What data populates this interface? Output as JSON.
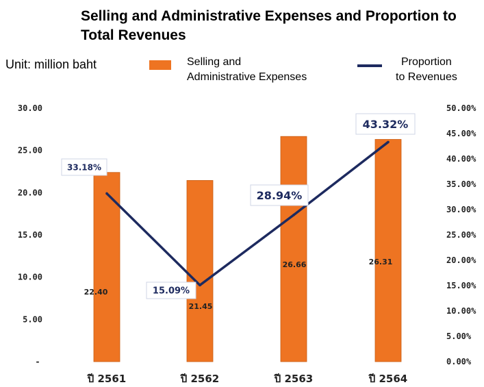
{
  "title": "Selling and Administrative Expenses and Proportion to Total Revenues",
  "unit_label": "Unit: million baht",
  "legend": {
    "bar_label_line1": "Selling and",
    "bar_label_line2": "Administrative Expenses",
    "line_label_line1": "Proportion",
    "line_label_line2": "to Revenues"
  },
  "colors": {
    "bar": "#ee7422",
    "line": "#1d2a5f",
    "label_text": "#1d2a5f"
  },
  "chart_data": {
    "type": "bar",
    "categories": [
      "ปี 2561",
      "ปี 2562",
      "ปี 2563",
      "ปี 2564"
    ],
    "series": [
      {
        "name": "Selling and Administrative Expenses",
        "type": "bar",
        "axis": "left",
        "values": [
          22.4,
          21.45,
          26.66,
          26.31
        ],
        "labels": [
          "22.40",
          "21.45",
          "26.66",
          "26.31"
        ]
      },
      {
        "name": "Proportion to Revenues",
        "type": "line",
        "axis": "right",
        "values": [
          33.18,
          15.09,
          28.94,
          43.32
        ],
        "labels": [
          "33.18%",
          "15.09%",
          "28.94%",
          "43.32%"
        ]
      }
    ],
    "y_left": {
      "ylim": [
        0,
        30
      ],
      "ticks": [
        0,
        5,
        10,
        15,
        20,
        25,
        30
      ],
      "tick_labels": [
        "-",
        "5.00",
        "10.00",
        "15.00",
        "20.00",
        "25.00",
        "30.00"
      ]
    },
    "y_right": {
      "ylim": [
        0,
        50
      ],
      "ticks": [
        0,
        5,
        10,
        15,
        20,
        25,
        30,
        35,
        40,
        45,
        50
      ],
      "tick_labels": [
        "0.00%",
        "5.00%",
        "10.00%",
        "15.00%",
        "20.00%",
        "25.00%",
        "30.00%",
        "35.00%",
        "40.00%",
        "45.00%",
        "50.00%"
      ]
    },
    "legend_position": "top",
    "grid": false
  }
}
